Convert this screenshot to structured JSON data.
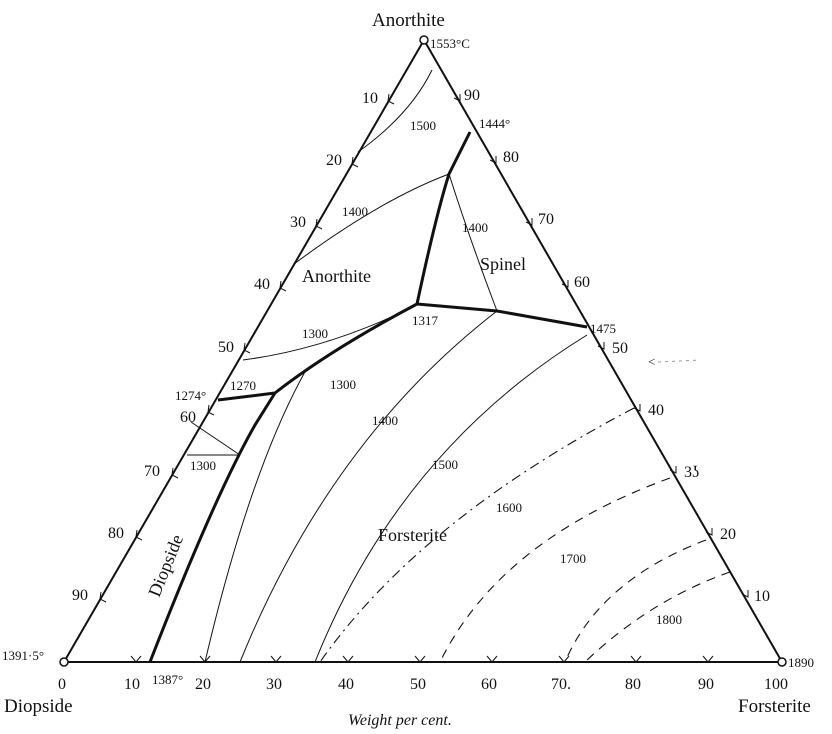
{
  "vertices": {
    "top": "Anorthite",
    "left": "Diopside",
    "right": "Forsterite"
  },
  "melting_points": {
    "anorthite": "1553°C",
    "diopside": "1391·5°",
    "forsterite": "1890"
  },
  "axis": {
    "title": "Weight per cent.",
    "bottom_ticks": [
      "0",
      "10",
      "20",
      "30",
      "40",
      "50",
      "60",
      "70.",
      "80",
      "90",
      "100"
    ],
    "left_ticks": [
      "10",
      "20",
      "30",
      "40",
      "50",
      "60",
      "70",
      "80",
      "90"
    ],
    "right_ticks": [
      "90",
      "80",
      "70",
      "60",
      "50",
      "40",
      "3ʖ",
      "20",
      "10"
    ]
  },
  "fields": {
    "anorthite": "Anorthite",
    "spinel": "Spinel",
    "forsterite": "Forsterite",
    "diopside": "Diopside"
  },
  "invariant_points": {
    "p1444": "1444°",
    "p1317": "1317",
    "p1475": "1475",
    "p1274": "1274°",
    "p1270": "1270",
    "p1387": "1387°"
  },
  "isotherms": {
    "i1500a": "1500",
    "i1400a": "1400",
    "i1400b": "1400",
    "i1300a": "1300",
    "i1300b": "1300",
    "i1300c": "1300",
    "i1400c": "1400",
    "i1500b": "1500",
    "i1600": "1600",
    "i1700": "1700",
    "i1800": "1800"
  },
  "margin_mark": "<"
}
